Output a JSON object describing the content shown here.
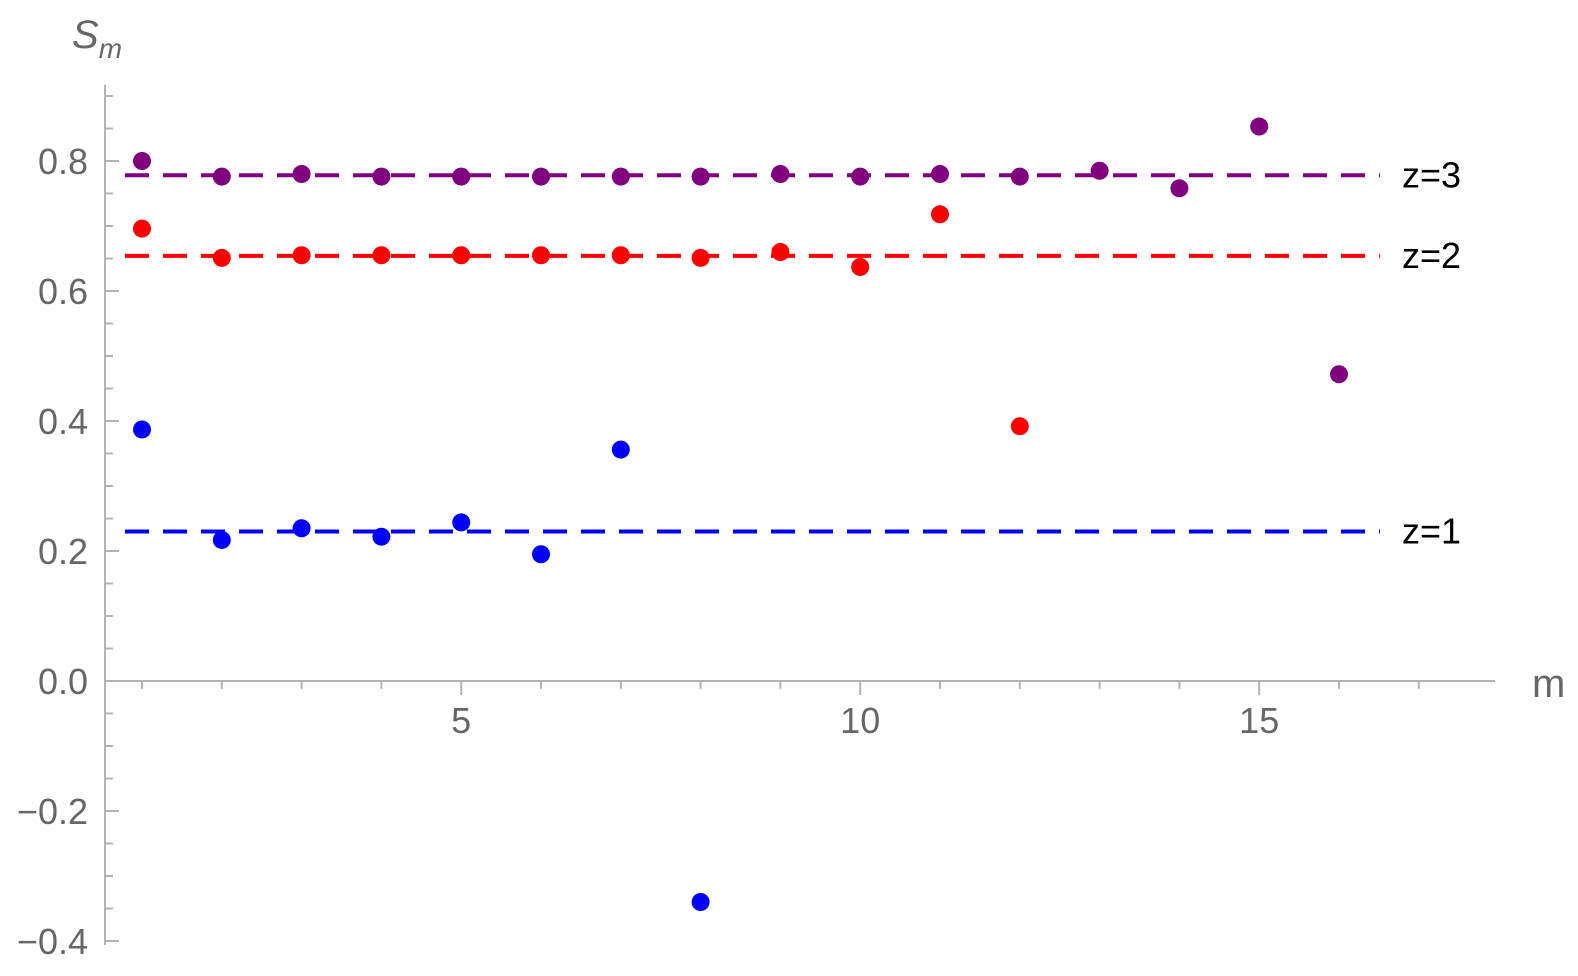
{
  "chart_data": {
    "type": "scatter",
    "title": "",
    "xlabel": "m",
    "ylabel_main": "S",
    "ylabel_sub": "m",
    "xlim": [
      0.1,
      17.9
    ],
    "ylim": [
      -0.4,
      0.92
    ],
    "xticks": [
      5,
      10,
      15
    ],
    "xtick_labels": [
      "5",
      "10",
      "15"
    ],
    "yticks": [
      -0.4,
      -0.2,
      0.0,
      0.2,
      0.4,
      0.6,
      0.8
    ],
    "ytick_labels": [
      "−0.4",
      "−0.2",
      "0.0",
      "0.2",
      "0.4",
      "0.6",
      "0.8"
    ],
    "series": [
      {
        "label": "z=1",
        "color": "#0000ff",
        "reference": 0.23,
        "points": [
          [
            1,
            0.387
          ],
          [
            2,
            0.217
          ],
          [
            3,
            0.235
          ],
          [
            4,
            0.222
          ],
          [
            5,
            0.244
          ],
          [
            6,
            0.195
          ],
          [
            7,
            0.356
          ],
          [
            8,
            -0.34
          ]
        ]
      },
      {
        "label": "z=2",
        "color": "#ff0000",
        "reference": 0.654,
        "points": [
          [
            1,
            0.696
          ],
          [
            2,
            0.651
          ],
          [
            3,
            0.655
          ],
          [
            4,
            0.655
          ],
          [
            5,
            0.655
          ],
          [
            6,
            0.655
          ],
          [
            7,
            0.655
          ],
          [
            8,
            0.651
          ],
          [
            9,
            0.66
          ],
          [
            10,
            0.637
          ],
          [
            11,
            0.718
          ],
          [
            12,
            0.392
          ]
        ]
      },
      {
        "label": "z=3",
        "color": "#800080",
        "reference": 0.778,
        "points": [
          [
            1,
            0.8
          ],
          [
            2,
            0.776
          ],
          [
            3,
            0.78
          ],
          [
            4,
            0.776
          ],
          [
            5,
            0.776
          ],
          [
            6,
            0.776
          ],
          [
            7,
            0.776
          ],
          [
            8,
            0.776
          ],
          [
            9,
            0.78
          ],
          [
            10,
            0.776
          ],
          [
            11,
            0.78
          ],
          [
            12,
            0.776
          ],
          [
            13,
            0.785
          ],
          [
            14,
            0.758
          ],
          [
            15,
            0.853
          ],
          [
            16,
            0.472
          ]
        ]
      }
    ]
  }
}
